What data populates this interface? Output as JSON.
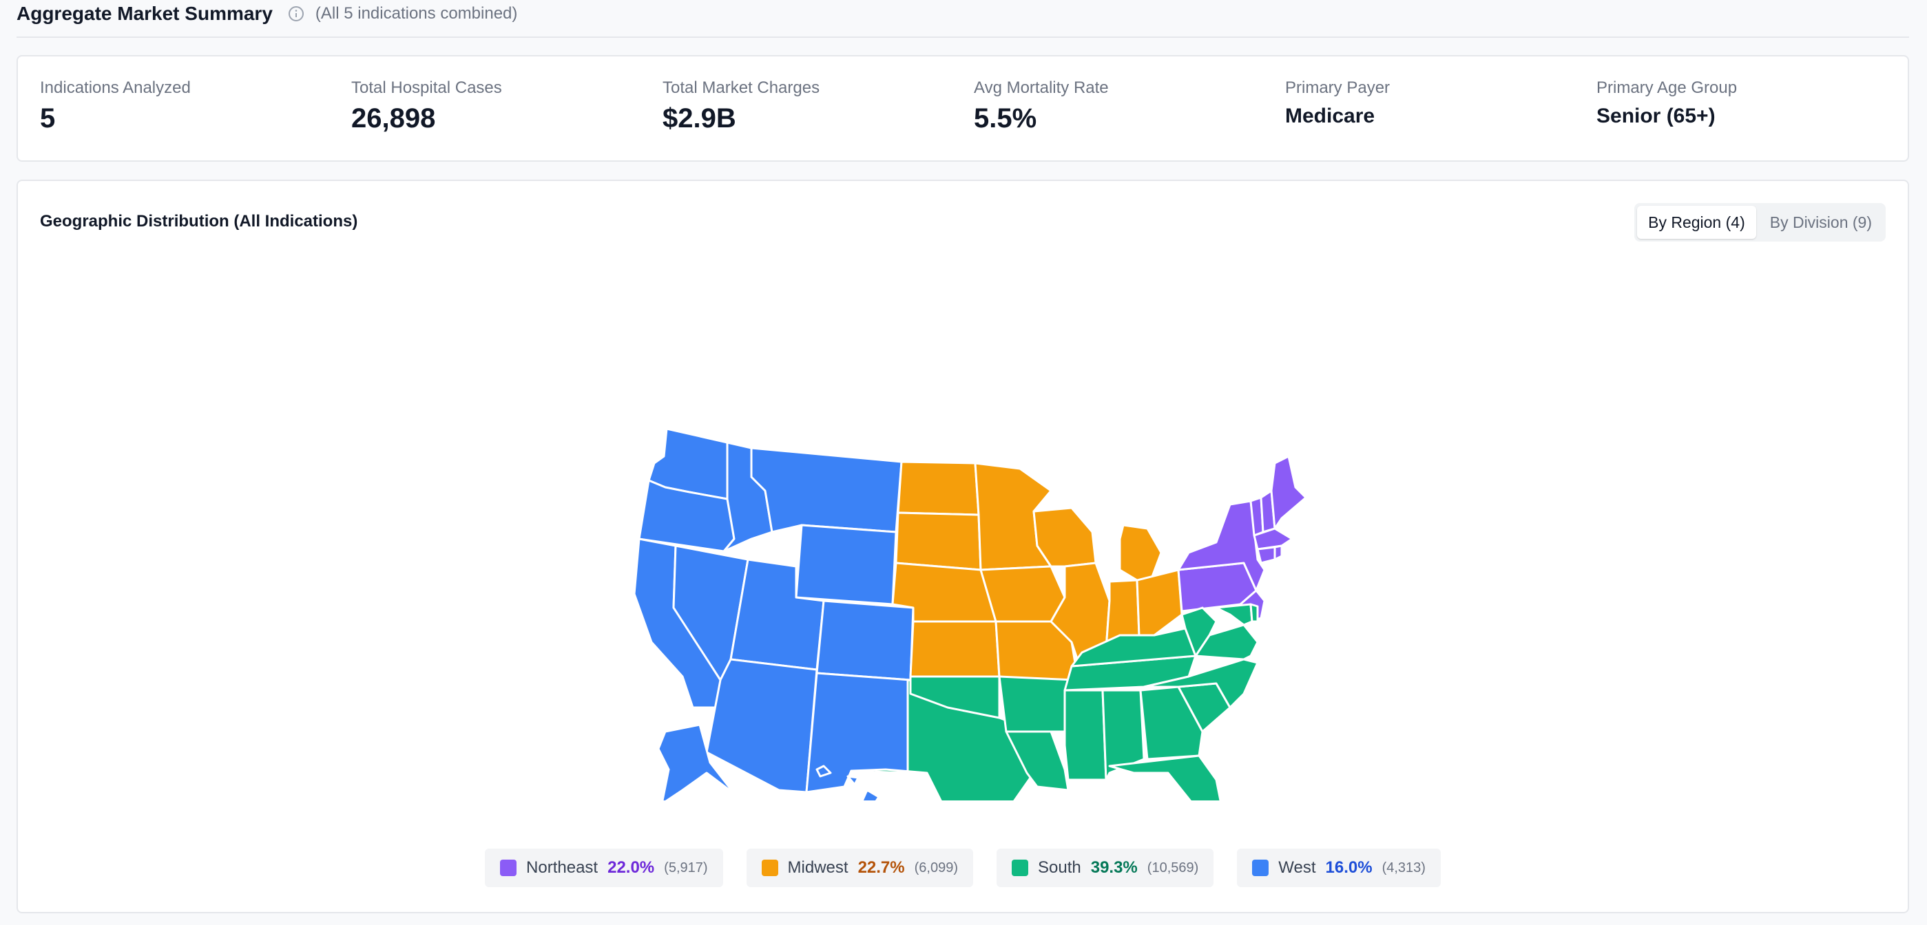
{
  "header": {
    "title": "Aggregate Market Summary",
    "subtitle": "(All 5 indications combined)"
  },
  "metrics": [
    {
      "label": "Indications Analyzed",
      "value": "5"
    },
    {
      "label": "Total Hospital Cases",
      "value": "26,898"
    },
    {
      "label": "Total Market Charges",
      "value": "$2.9B"
    },
    {
      "label": "Avg Mortality Rate",
      "value": "5.5%"
    },
    {
      "label": "Primary Payer",
      "value": "Medicare"
    },
    {
      "label": "Primary Age Group",
      "value": "Senior (65+)"
    }
  ],
  "geo": {
    "title": "Geographic Distribution (All Indications)",
    "toggle": {
      "region_label": "By Region (4)",
      "division_label": "By Division (9)",
      "selected": "region"
    }
  },
  "regions": [
    {
      "name": "Northeast",
      "percent": "22.0%",
      "count": "(5,917)",
      "color": "#8b5cf6",
      "pct_color": "#6d28d9"
    },
    {
      "name": "Midwest",
      "percent": "22.7%",
      "count": "(6,099)",
      "color": "#f59e0b",
      "pct_color": "#b45309"
    },
    {
      "name": "South",
      "percent": "39.3%",
      "count": "(10,569)",
      "color": "#10b981",
      "pct_color": "#047857"
    },
    {
      "name": "West",
      "percent": "16.0%",
      "count": "(4,313)",
      "color": "#3b82f6",
      "pct_color": "#1d4ed8"
    }
  ]
}
